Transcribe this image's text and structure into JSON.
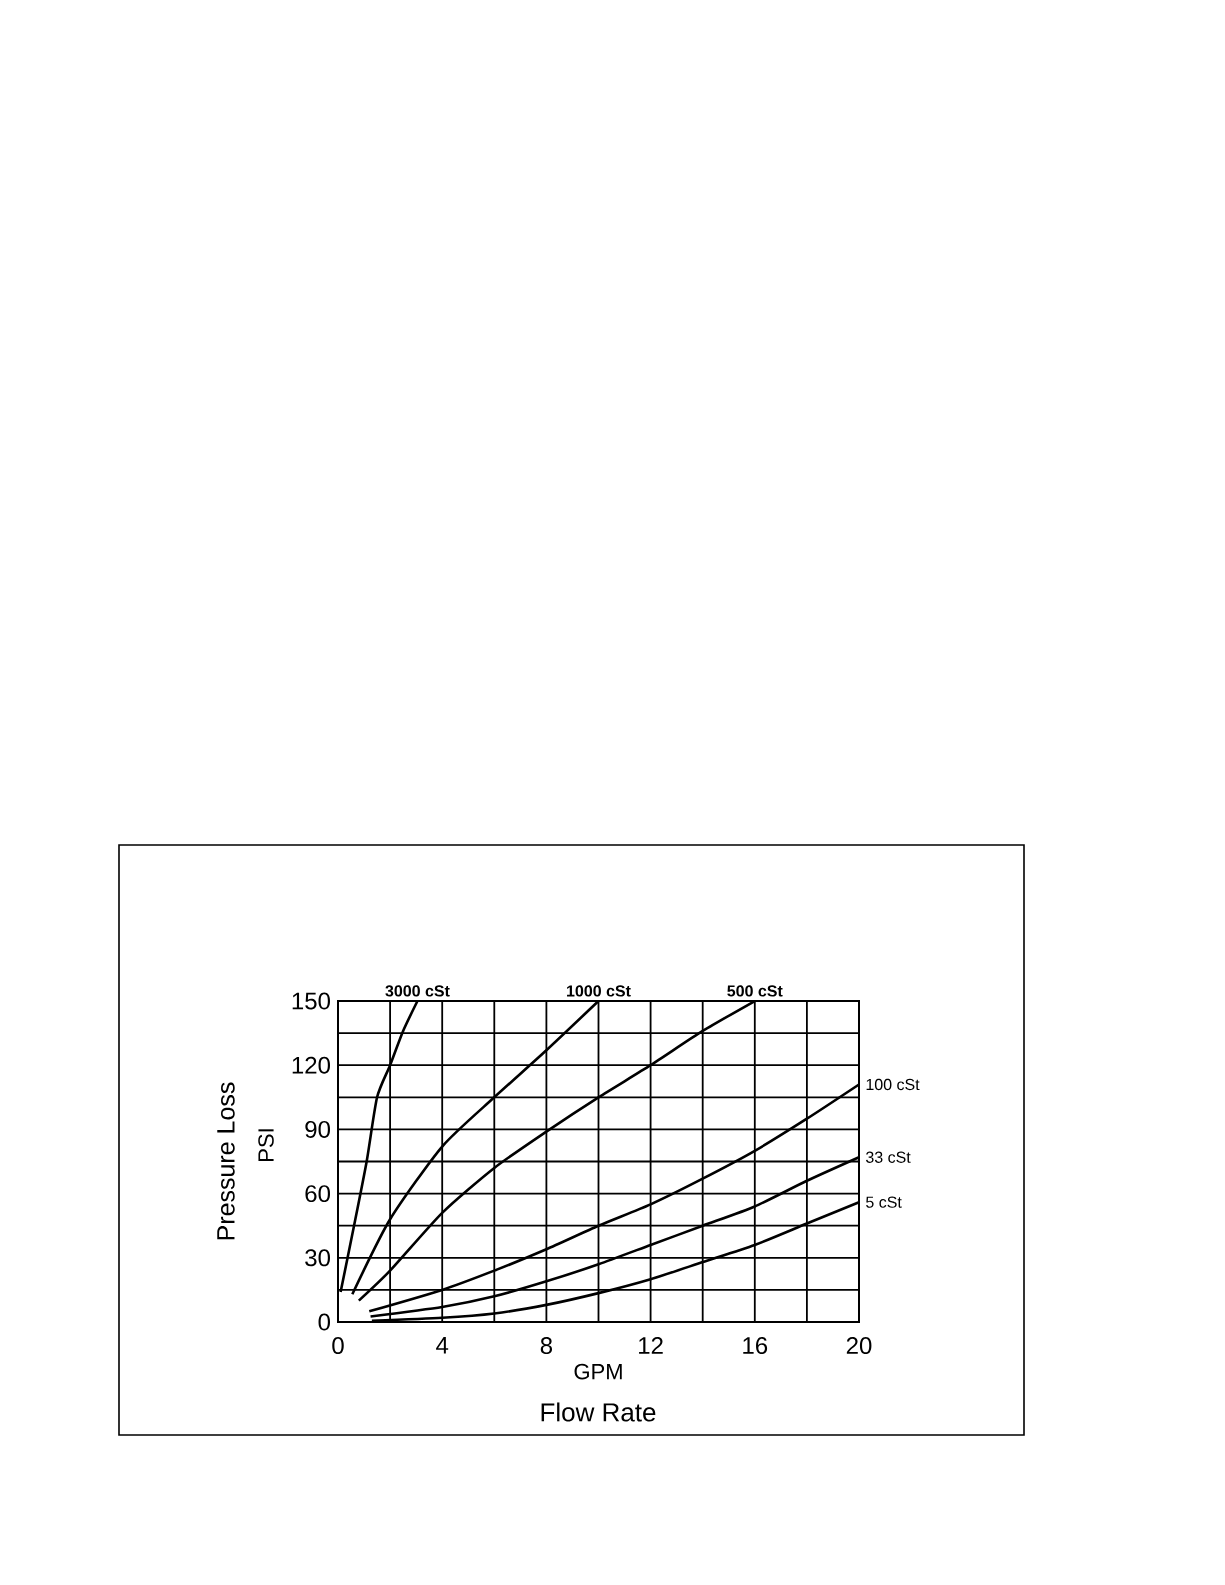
{
  "chart_data": {
    "type": "line",
    "xlabel": "GPM",
    "ylabel": "Pressure Loss",
    "annotations": [
      "Flow Rate",
      "PSI"
    ],
    "xlim": [
      0,
      20
    ],
    "ylim": [
      0,
      150
    ],
    "xticks": [
      0,
      {
        "value": 2,
        "label": null
      },
      4,
      {
        "value": 6,
        "label": null
      },
      8,
      {
        "value": 10,
        "label": null
      },
      12,
      {
        "value": 14,
        "label": null
      },
      16,
      {
        "value": 18,
        "label": null
      },
      20
    ],
    "yticks": [
      0,
      {
        "value": 15,
        "label": null
      },
      30,
      {
        "value": 45,
        "label": null
      },
      60,
      {
        "value": 75,
        "label": null
      },
      90,
      {
        "value": 105,
        "label": null
      },
      120,
      {
        "value": 135,
        "label": null
      },
      150
    ],
    "grid": true,
    "legend": false,
    "marker": "none",
    "line_style": "solid",
    "series": [
      {
        "name": "3000 cSt",
        "color": "#000000",
        "x": [
          0.1,
          0.6,
          1.1,
          1.5,
          2.0,
          2.5,
          3.05
        ],
        "values": [
          14,
          44,
          75,
          105,
          120,
          136,
          150
        ]
      },
      {
        "name": "1000 cSt",
        "color": "#000000",
        "x": [
          0.55,
          2,
          4,
          6,
          8,
          10
        ],
        "values": [
          13,
          48,
          82,
          105,
          127,
          150
        ]
      },
      {
        "name": "500 cSt",
        "color": "#000000",
        "x": [
          0.8,
          2,
          4,
          6,
          8,
          10,
          12,
          14,
          16
        ],
        "values": [
          10,
          24,
          51,
          72,
          89,
          105,
          120,
          136,
          150
        ]
      },
      {
        "name": "100 cSt",
        "color": "#000000",
        "x": [
          1.2,
          4,
          6,
          8,
          10,
          12,
          14,
          16,
          18,
          20
        ],
        "values": [
          5,
          15,
          24,
          34,
          45,
          55,
          67,
          80,
          95,
          111
        ]
      },
      {
        "name": "33 cSt",
        "color": "#000000",
        "x": [
          1.25,
          4,
          6,
          8,
          10,
          12,
          14,
          16,
          18,
          20
        ],
        "values": [
          2.6,
          7,
          12,
          19,
          27,
          36,
          45,
          54,
          66,
          77
        ]
      },
      {
        "name": "5 cSt",
        "color": "#000000",
        "x": [
          1.3,
          4,
          6,
          8,
          10,
          12,
          14,
          16,
          18,
          20
        ],
        "values": [
          0.6,
          2,
          4,
          8,
          13.5,
          20,
          28,
          36,
          46,
          56
        ]
      }
    ]
  }
}
